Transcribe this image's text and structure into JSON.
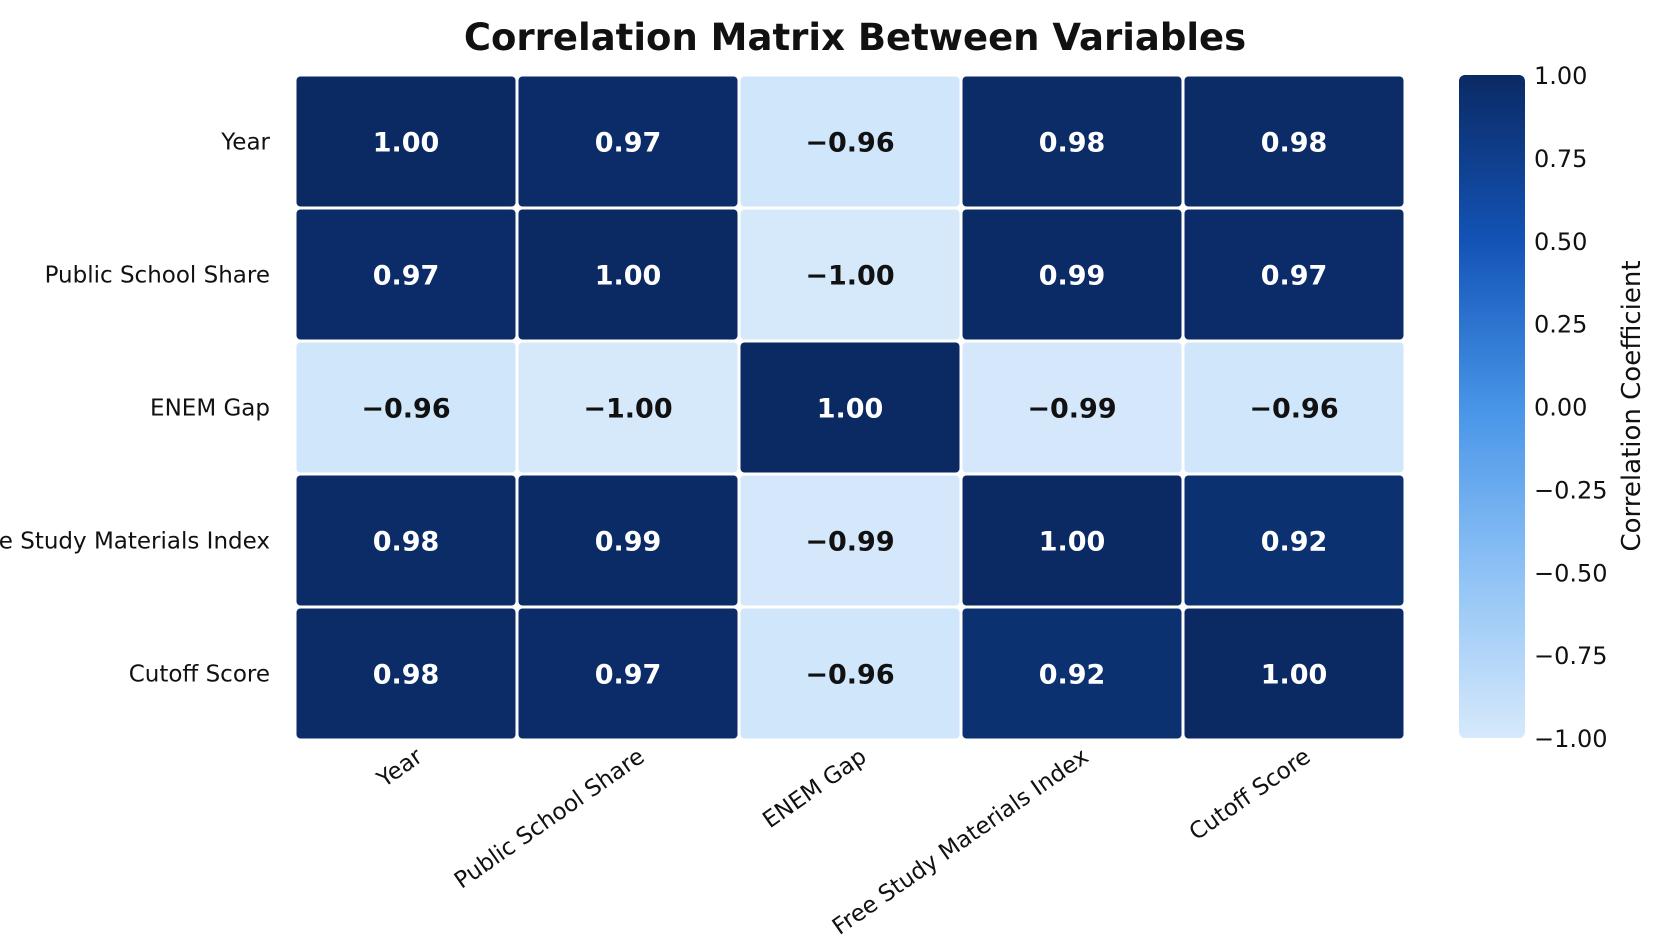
{
  "chart_data": {
    "type": "heatmap",
    "title": "Correlation Matrix Between Variables",
    "rows": [
      "Year",
      "Public School Share",
      "ENEM Gap",
      "Free Study Materials Index",
      "Cutoff Score"
    ],
    "columns": [
      "Year",
      "Public School Share",
      "ENEM Gap",
      "Free Study Materials Index",
      "Cutoff Score"
    ],
    "values": [
      [
        1.0,
        0.97,
        -0.96,
        0.98,
        0.98
      ],
      [
        0.97,
        1.0,
        -1.0,
        0.99,
        0.97
      ],
      [
        -0.96,
        -1.0,
        1.0,
        -0.99,
        -0.96
      ],
      [
        0.98,
        0.99,
        -0.99,
        1.0,
        0.92
      ],
      [
        0.98,
        0.97,
        -0.96,
        0.92,
        1.0
      ]
    ],
    "value_labels": [
      [
        "1.00",
        "0.97",
        "−0.96",
        "0.98",
        "0.98"
      ],
      [
        "0.97",
        "1.00",
        "−1.00",
        "0.99",
        "0.97"
      ],
      [
        "−0.96",
        "−1.00",
        "1.00",
        "−0.99",
        "−0.96"
      ],
      [
        "0.98",
        "0.99",
        "−0.99",
        "1.00",
        "0.92"
      ],
      [
        "0.98",
        "0.97",
        "−0.96",
        "0.92",
        "1.00"
      ]
    ],
    "colorbar": {
      "label": "Correlation Coefficient",
      "range": [
        -1.0,
        1.0
      ],
      "ticks": [
        1.0,
        0.75,
        0.5,
        0.25,
        0.0,
        -0.25,
        -0.5,
        -0.75,
        -1.0
      ],
      "tick_labels": [
        "1.00",
        "0.75",
        "0.50",
        "0.25",
        "0.00",
        "−0.25",
        "−0.50",
        "−0.75",
        "−1.00"
      ],
      "colors": [
        "#d6e9fb",
        "#8ec2f5",
        "#4794e8",
        "#1353b6",
        "#0b2a64"
      ]
    }
  }
}
